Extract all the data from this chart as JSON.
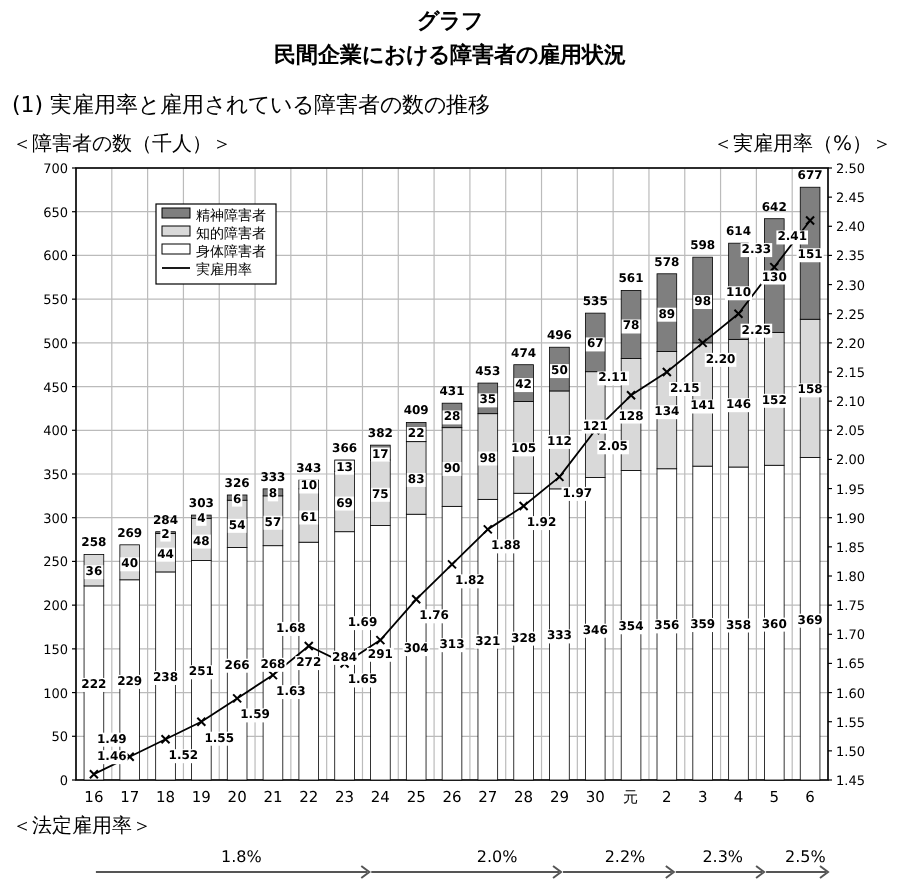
{
  "chart_data": {
    "type": "bar",
    "stacked": true,
    "title": "グラフ",
    "subtitle": "民間企業における障害者の雇用状況",
    "annotations": [
      "(1) 実雇用率と雇用されている障害者の数の推移",
      "＜法定雇用率＞",
      "1.8%",
      "2.0%",
      "2.2%",
      "2.3%",
      "2.5%"
    ],
    "ylabel": "＜障害者の数（千人）＞",
    "y2label": "＜実雇用率（%）＞",
    "categories": [
      "16",
      "17",
      "18",
      "19",
      "20",
      "21",
      "22",
      "23",
      "24",
      "25",
      "26",
      "27",
      "28",
      "29",
      "30",
      "元",
      "2",
      "3",
      "4",
      "5",
      "6"
    ],
    "series": [
      {
        "name": "身体障害者",
        "color": "#ffffff",
        "values": [
          222,
          229,
          238,
          251,
          266,
          268,
          272,
          284,
          291,
          304,
          313,
          321,
          328,
          333,
          346,
          354,
          356,
          359,
          358,
          360,
          369
        ]
      },
      {
        "name": "知的障害者",
        "color": "#d9d9d9",
        "values": [
          36,
          40,
          44,
          48,
          54,
          57,
          61,
          69,
          75,
          83,
          90,
          98,
          105,
          112,
          121,
          128,
          134,
          141,
          146,
          152,
          158
        ]
      },
      {
        "name": "精神障害者",
        "color": "#7f7f7f",
        "values": [
          null,
          null,
          2,
          4,
          6,
          8,
          10,
          13,
          17,
          22,
          28,
          35,
          42,
          50,
          67,
          78,
          89,
          98,
          110,
          130,
          151
        ]
      },
      {
        "name": "実雇用率",
        "type": "line",
        "axis": "y2",
        "color": "#000000",
        "marker": "cross",
        "values": [
          1.46,
          1.49,
          1.52,
          1.55,
          1.59,
          1.63,
          1.68,
          1.65,
          1.69,
          1.76,
          1.82,
          1.88,
          1.92,
          1.97,
          2.05,
          2.11,
          2.15,
          2.2,
          2.25,
          2.33,
          2.41
        ],
        "value_labels": [
          "1.46",
          "1.49",
          "1.52",
          "1.55",
          "1.59",
          "1.63",
          "1.68",
          "1.65",
          "1.69",
          "1.76",
          "1.82",
          "1.88",
          "1.92",
          "1.97",
          "2.05",
          "2.11",
          "2.15",
          "2.20",
          "2.25",
          "2.33",
          "2.41"
        ]
      }
    ],
    "totals": [
      "258",
      "269",
      "284",
      "303",
      "326",
      "333",
      "343",
      "366",
      "382",
      "409",
      "431",
      "453",
      "474",
      "496",
      "535",
      "561",
      "578",
      "598",
      "614",
      "642",
      "677"
    ],
    "data_labels": true,
    "ylim": [
      0,
      700
    ],
    "yticks": [
      0,
      50,
      100,
      150,
      200,
      250,
      300,
      350,
      400,
      450,
      500,
      550,
      600,
      650,
      700
    ],
    "y2lim": [
      1.45,
      2.5
    ],
    "y2ticks": [
      {
        "value": 1.45,
        "label": "1.45"
      },
      {
        "value": 1.5,
        "label": "1.50"
      },
      {
        "value": 1.55,
        "label": "1.55"
      },
      {
        "value": 1.6,
        "label": "1.60"
      },
      {
        "value": 1.65,
        "label": "1.65"
      },
      {
        "value": 1.7,
        "label": "1.70"
      },
      {
        "value": 1.75,
        "label": "1.75"
      },
      {
        "value": 1.8,
        "label": "1.80"
      },
      {
        "value": 1.85,
        "label": "1.85"
      },
      {
        "value": 1.9,
        "label": "1.90"
      },
      {
        "value": 1.95,
        "label": "1.95"
      },
      {
        "value": 2.0,
        "label": "2.00"
      },
      {
        "value": 2.05,
        "label": "2.05"
      },
      {
        "value": 2.1,
        "label": "2.10"
      },
      {
        "value": 2.15,
        "label": "2.15"
      },
      {
        "value": 2.2,
        "label": "2.20"
      },
      {
        "value": 2.25,
        "label": "2.25"
      },
      {
        "value": 2.3,
        "label": "2.30"
      },
      {
        "value": 2.35,
        "label": "2.35"
      },
      {
        "value": 2.4,
        "label": "2.40"
      },
      {
        "value": 2.45,
        "label": "2.45"
      },
      {
        "value": 2.5,
        "label": "2.50"
      }
    ],
    "grid": true,
    "legend": "top left"
  }
}
